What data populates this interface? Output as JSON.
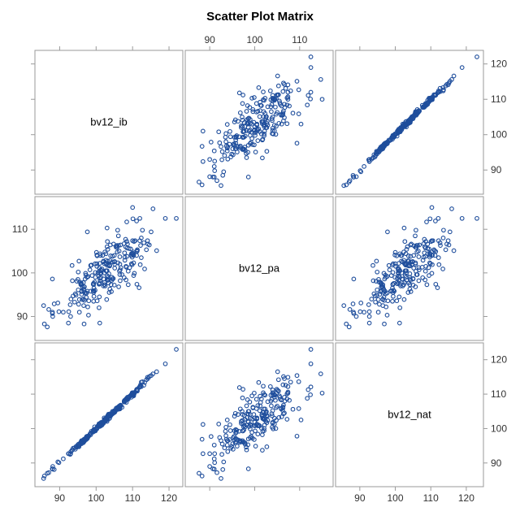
{
  "chart_data": {
    "type": "scatter_matrix",
    "title": "Scatter Plot Matrix",
    "variables": [
      "bv12_ib",
      "bv12_pa",
      "bv12_nat"
    ],
    "ranges": {
      "bv12_ib": [
        85,
        122
      ],
      "bv12_pa": [
        86,
        116
      ],
      "bv12_nat": [
        85,
        123
      ]
    },
    "ticks": {
      "bv12_ib": [
        90,
        100,
        110,
        120
      ],
      "bv12_pa": [
        90,
        100,
        110
      ],
      "bv12_nat": [
        90,
        100,
        110,
        120
      ]
    },
    "grid": false,
    "marker": "open circle",
    "marker_color": "#1f4e9c",
    "n_points": 250,
    "correlation_summary": {
      "bv12_ib_vs_bv12_nat": "nearly perfect positive linear relation (points along the line y = x)",
      "bv12_ib_vs_bv12_pa": "moderate positive relation",
      "bv12_pa_vs_bv12_nat": "moderate positive relation"
    },
    "sample_observations": [
      {
        "bv12_ib": 85.6,
        "bv12_pa": 92.5,
        "bv12_nat": 85.5
      },
      {
        "bv12_ib": 88.0,
        "bv12_pa": 91.0,
        "bv12_nat": 88.2
      },
      {
        "bv12_ib": 95.0,
        "bv12_pa": 98.5,
        "bv12_nat": 95.3
      },
      {
        "bv12_ib": 100.5,
        "bv12_pa": 100.0,
        "bv12_nat": 100.8
      },
      {
        "bv12_ib": 101.0,
        "bv12_pa": 88.5,
        "bv12_nat": 101.2
      },
      {
        "bv12_ib": 105.0,
        "bv12_pa": 104.0,
        "bv12_nat": 105.2
      },
      {
        "bv12_ib": 110.0,
        "bv12_pa": 115.0,
        "bv12_nat": 110.3
      },
      {
        "bv12_ib": 112.0,
        "bv12_pa": 112.5,
        "bv12_nat": 112.1
      },
      {
        "bv12_ib": 119.0,
        "bv12_pa": 112.5,
        "bv12_nat": 118.8
      },
      {
        "bv12_ib": 122.0,
        "bv12_pa": 112.5,
        "bv12_nat": 123.0
      }
    ]
  },
  "colors": {
    "marker": "#1f4e9c",
    "frame": "#9a9a9a",
    "background": "#ffffff"
  }
}
